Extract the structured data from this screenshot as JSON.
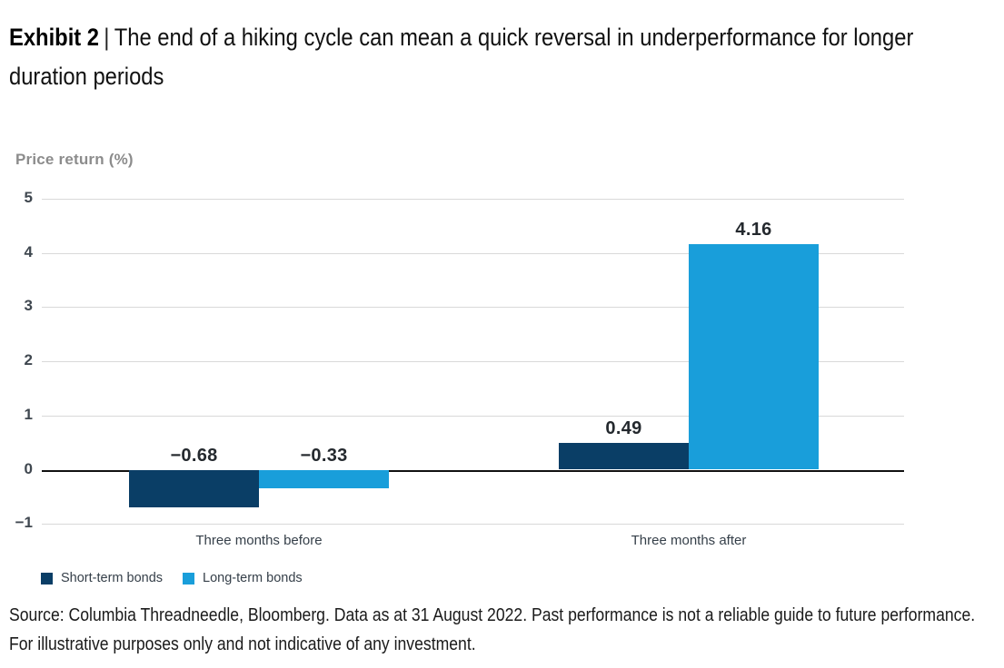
{
  "title": {
    "prefix": "Exhibit 2",
    "separator": "|",
    "text": "The end of a hiking cycle can mean a quick reversal in underperformance for longer duration periods"
  },
  "chart_data": {
    "type": "bar",
    "axis_title": "Price return (%)",
    "categories": [
      "Three months before",
      "Three months after"
    ],
    "series": [
      {
        "name": "Short-term bonds",
        "color": "#0a3e66",
        "values": [
          -0.68,
          0.49
        ],
        "labels": [
          "−0.68",
          "0.49"
        ]
      },
      {
        "name": "Long-term bonds",
        "color": "#199eda",
        "values": [
          -0.33,
          4.16
        ],
        "labels": [
          "−0.33",
          "4.16"
        ]
      }
    ],
    "ylim": [
      -1,
      5
    ],
    "yticks": [
      5,
      4,
      3,
      2,
      1,
      0,
      -1
    ],
    "grid": "horizontal",
    "legend_position": "bottom-left"
  },
  "source": "Source: Columbia Threadneedle, Bloomberg. Data as at 31 August 2022. Past performance is not a reliable guide to future performance. For illustrative purposes only and not indicative of any investment."
}
